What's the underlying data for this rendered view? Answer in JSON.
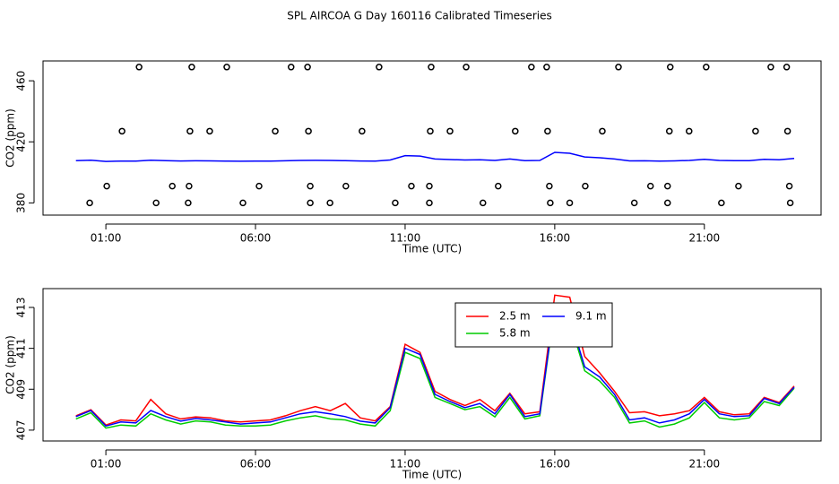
{
  "chart_data": [
    {
      "type": "line",
      "title": "SPL AIRCOA G  Day 160116  Calibrated Timeseries",
      "xlabel": "Time (UTC)",
      "ylabel": "CO2 (ppm)",
      "x": [
        0,
        0.5,
        1,
        1.5,
        2,
        2.5,
        3,
        3.5,
        4,
        4.5,
        5,
        5.5,
        6,
        6.5,
        7,
        7.5,
        8,
        8.5,
        9,
        9.5,
        10,
        10.5,
        11,
        11.5,
        12,
        12.5,
        13,
        13.5,
        14,
        14.5,
        15,
        15.5,
        16,
        16.5,
        17,
        17.5,
        18,
        18.5,
        19,
        19.5,
        20,
        20.5,
        21,
        21.5,
        22,
        22.5,
        23,
        23.5,
        24
      ],
      "series": [
        {
          "color": "#0000ff",
          "values": [
            407.66,
            407.96,
            407.2,
            407.4,
            407.35,
            407.96,
            407.66,
            407.44,
            407.57,
            407.5,
            407.4,
            407.3,
            407.35,
            407.4,
            407.6,
            407.8,
            407.9,
            407.8,
            407.66,
            407.44,
            407.35,
            408.1,
            411.0,
            410.7,
            408.75,
            408.4,
            408.1,
            408.3,
            407.8,
            408.75,
            407.66,
            407.8,
            413.1,
            412.5,
            410.1,
            409.6,
            408.75,
            407.5,
            407.6,
            407.35,
            407.5,
            407.8,
            408.5,
            407.8,
            407.66,
            407.7,
            408.55,
            408.3,
            409.1
          ]
        }
      ],
      "markers": {
        "color": "#000000",
        "x": [
          2.11,
          3.87,
          5.04,
          7.19,
          7.74,
          10.13,
          11.87,
          13.04,
          15.22,
          15.73,
          18.13,
          19.86,
          21.06,
          23.22,
          23.75,
          1.54,
          3.81,
          4.47,
          6.66,
          7.77,
          9.56,
          11.84,
          12.5,
          14.68,
          15.76,
          17.59,
          19.83,
          20.49,
          22.71,
          23.78,
          1.03,
          3.22,
          3.78,
          6.12,
          7.83,
          9.02,
          11.21,
          11.81,
          14.11,
          15.82,
          17.02,
          19.2,
          19.77,
          22.14,
          23.84,
          0.46,
          2.68,
          3.75,
          5.58,
          7.83,
          8.49,
          10.67,
          11.81,
          13.6,
          15.85,
          16.5,
          18.66,
          19.77,
          21.57,
          23.87
        ],
        "values": [
          469,
          469,
          469,
          469,
          469,
          469,
          469,
          469,
          469,
          469,
          469,
          469,
          469,
          469,
          469,
          427,
          427,
          427,
          427,
          427,
          427,
          427,
          427,
          427,
          427,
          427,
          427,
          427,
          427,
          427,
          391,
          391,
          391,
          391,
          391,
          391,
          391,
          391,
          391,
          391,
          391,
          391,
          391,
          391,
          391,
          380,
          380,
          380,
          380,
          380,
          380,
          380,
          380,
          380,
          380,
          380,
          380,
          380,
          380,
          380
        ]
      },
      "xlim": [
        -1.1,
        24.9
      ],
      "ylim": [
        372,
        473
      ],
      "xticks": [
        {
          "value": 1,
          "label": "01:00"
        },
        {
          "value": 6,
          "label": "06:00"
        },
        {
          "value": 11,
          "label": "11:00"
        },
        {
          "value": 16,
          "label": "16:00"
        },
        {
          "value": 21,
          "label": "21:00"
        }
      ],
      "yticks": [
        380,
        420,
        460
      ]
    },
    {
      "type": "line",
      "xlabel": "Time (UTC)",
      "ylabel": "CO2 (ppm)",
      "x": [
        0,
        0.5,
        1,
        1.5,
        2,
        2.5,
        3,
        3.5,
        4,
        4.5,
        5,
        5.5,
        6,
        6.5,
        7,
        7.5,
        8,
        8.5,
        9,
        9.5,
        10,
        10.5,
        11,
        11.5,
        12,
        12.5,
        13,
        13.5,
        14,
        14.5,
        15,
        15.5,
        16,
        16.5,
        17,
        17.5,
        18,
        18.5,
        19,
        19.5,
        20,
        20.5,
        21,
        21.5,
        22,
        22.5,
        23,
        23.5,
        24
      ],
      "series": [
        {
          "name": "2.5 m",
          "color": "#ff0000",
          "values": [
            407.7,
            408.0,
            407.25,
            407.5,
            407.45,
            408.5,
            407.8,
            407.55,
            407.65,
            407.6,
            407.45,
            407.4,
            407.45,
            407.5,
            407.7,
            407.95,
            408.15,
            407.95,
            408.3,
            407.6,
            407.45,
            408.15,
            411.2,
            410.8,
            408.9,
            408.5,
            408.2,
            408.5,
            407.95,
            408.8,
            407.8,
            407.9,
            413.6,
            413.5,
            410.6,
            409.8,
            408.9,
            407.85,
            407.9,
            407.7,
            407.8,
            407.95,
            408.6,
            407.9,
            407.75,
            407.8,
            408.6,
            408.35,
            409.15
          ]
        },
        {
          "name": "5.8 m",
          "color": "#00cc00",
          "values": [
            407.55,
            407.85,
            407.1,
            407.25,
            407.2,
            407.8,
            407.5,
            407.3,
            407.45,
            407.4,
            407.25,
            407.2,
            407.2,
            407.25,
            407.45,
            407.6,
            407.7,
            407.55,
            407.5,
            407.3,
            407.2,
            407.95,
            410.8,
            410.5,
            408.6,
            408.3,
            408.0,
            408.15,
            407.65,
            408.6,
            407.55,
            407.7,
            413.0,
            412.3,
            409.9,
            409.4,
            408.6,
            407.35,
            407.45,
            407.15,
            407.3,
            407.6,
            408.35,
            407.6,
            407.5,
            407.6,
            408.4,
            408.2,
            409.05
          ]
        },
        {
          "name": "9.1 m",
          "color": "#0000ff",
          "values": [
            407.66,
            407.96,
            407.2,
            407.4,
            407.35,
            407.96,
            407.66,
            407.44,
            407.57,
            407.5,
            407.4,
            407.3,
            407.35,
            407.4,
            407.6,
            407.8,
            407.9,
            407.8,
            407.66,
            407.44,
            407.35,
            408.1,
            411.0,
            410.7,
            408.75,
            408.4,
            408.1,
            408.3,
            407.8,
            408.75,
            407.66,
            407.8,
            413.1,
            412.5,
            410.1,
            409.6,
            408.75,
            407.5,
            407.6,
            407.35,
            407.5,
            407.8,
            408.5,
            407.8,
            407.66,
            407.7,
            408.55,
            408.3,
            409.1
          ]
        }
      ],
      "legend": "top",
      "xlim": [
        -1.1,
        24.9
      ],
      "ylim": [
        406.47,
        413.92
      ],
      "xticks": [
        {
          "value": 1,
          "label": "01:00"
        },
        {
          "value": 6,
          "label": "06:00"
        },
        {
          "value": 11,
          "label": "11:00"
        },
        {
          "value": 16,
          "label": "16:00"
        },
        {
          "value": 21,
          "label": "21:00"
        }
      ],
      "yticks": [
        407,
        409,
        411,
        413
      ]
    }
  ]
}
